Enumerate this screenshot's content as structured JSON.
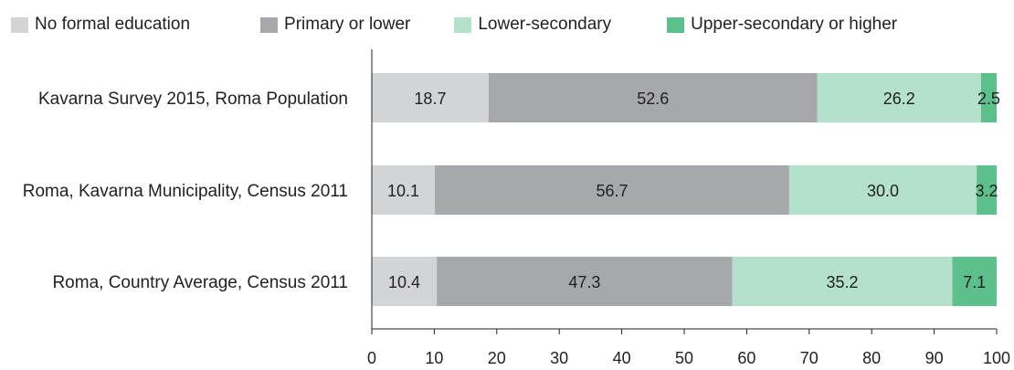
{
  "chart_data": {
    "type": "bar",
    "orientation": "horizontal",
    "stacked": true,
    "title": "",
    "xlabel": "",
    "ylabel": "",
    "xlim": [
      0,
      100
    ],
    "xticks": [
      "0",
      "10",
      "20",
      "30",
      "40",
      "50",
      "60",
      "70",
      "80",
      "90",
      "100"
    ],
    "grid": false,
    "legend_position": "top",
    "categories": [
      "Kavarna Survey 2015, Roma Population",
      "Roma, Kavarna Municipality, Census 2011",
      "Roma, Country Average, Census 2011"
    ],
    "series": [
      {
        "name": "No formal education",
        "color": "#d3d4d5",
        "values": [
          18.7,
          10.1,
          10.4
        ],
        "labels": [
          "18.7",
          "10.1",
          "10.4"
        ]
      },
      {
        "name": "Primary or lower",
        "color": "#a7a8ac",
        "values": [
          52.6,
          56.7,
          47.3
        ],
        "labels": [
          "52.6",
          "56.7",
          "47.3"
        ]
      },
      {
        "name": "Lower-secondary",
        "color": "#b4e1cb",
        "values": [
          26.2,
          30.0,
          35.2
        ],
        "labels": [
          "26.2",
          "30.0",
          "35.2"
        ]
      },
      {
        "name": "Upper-secondary or higher",
        "color": "#5dbf8b",
        "values": [
          2.5,
          3.2,
          7.1
        ],
        "labels": [
          "2.5",
          "3.2",
          "7.1"
        ]
      }
    ]
  }
}
